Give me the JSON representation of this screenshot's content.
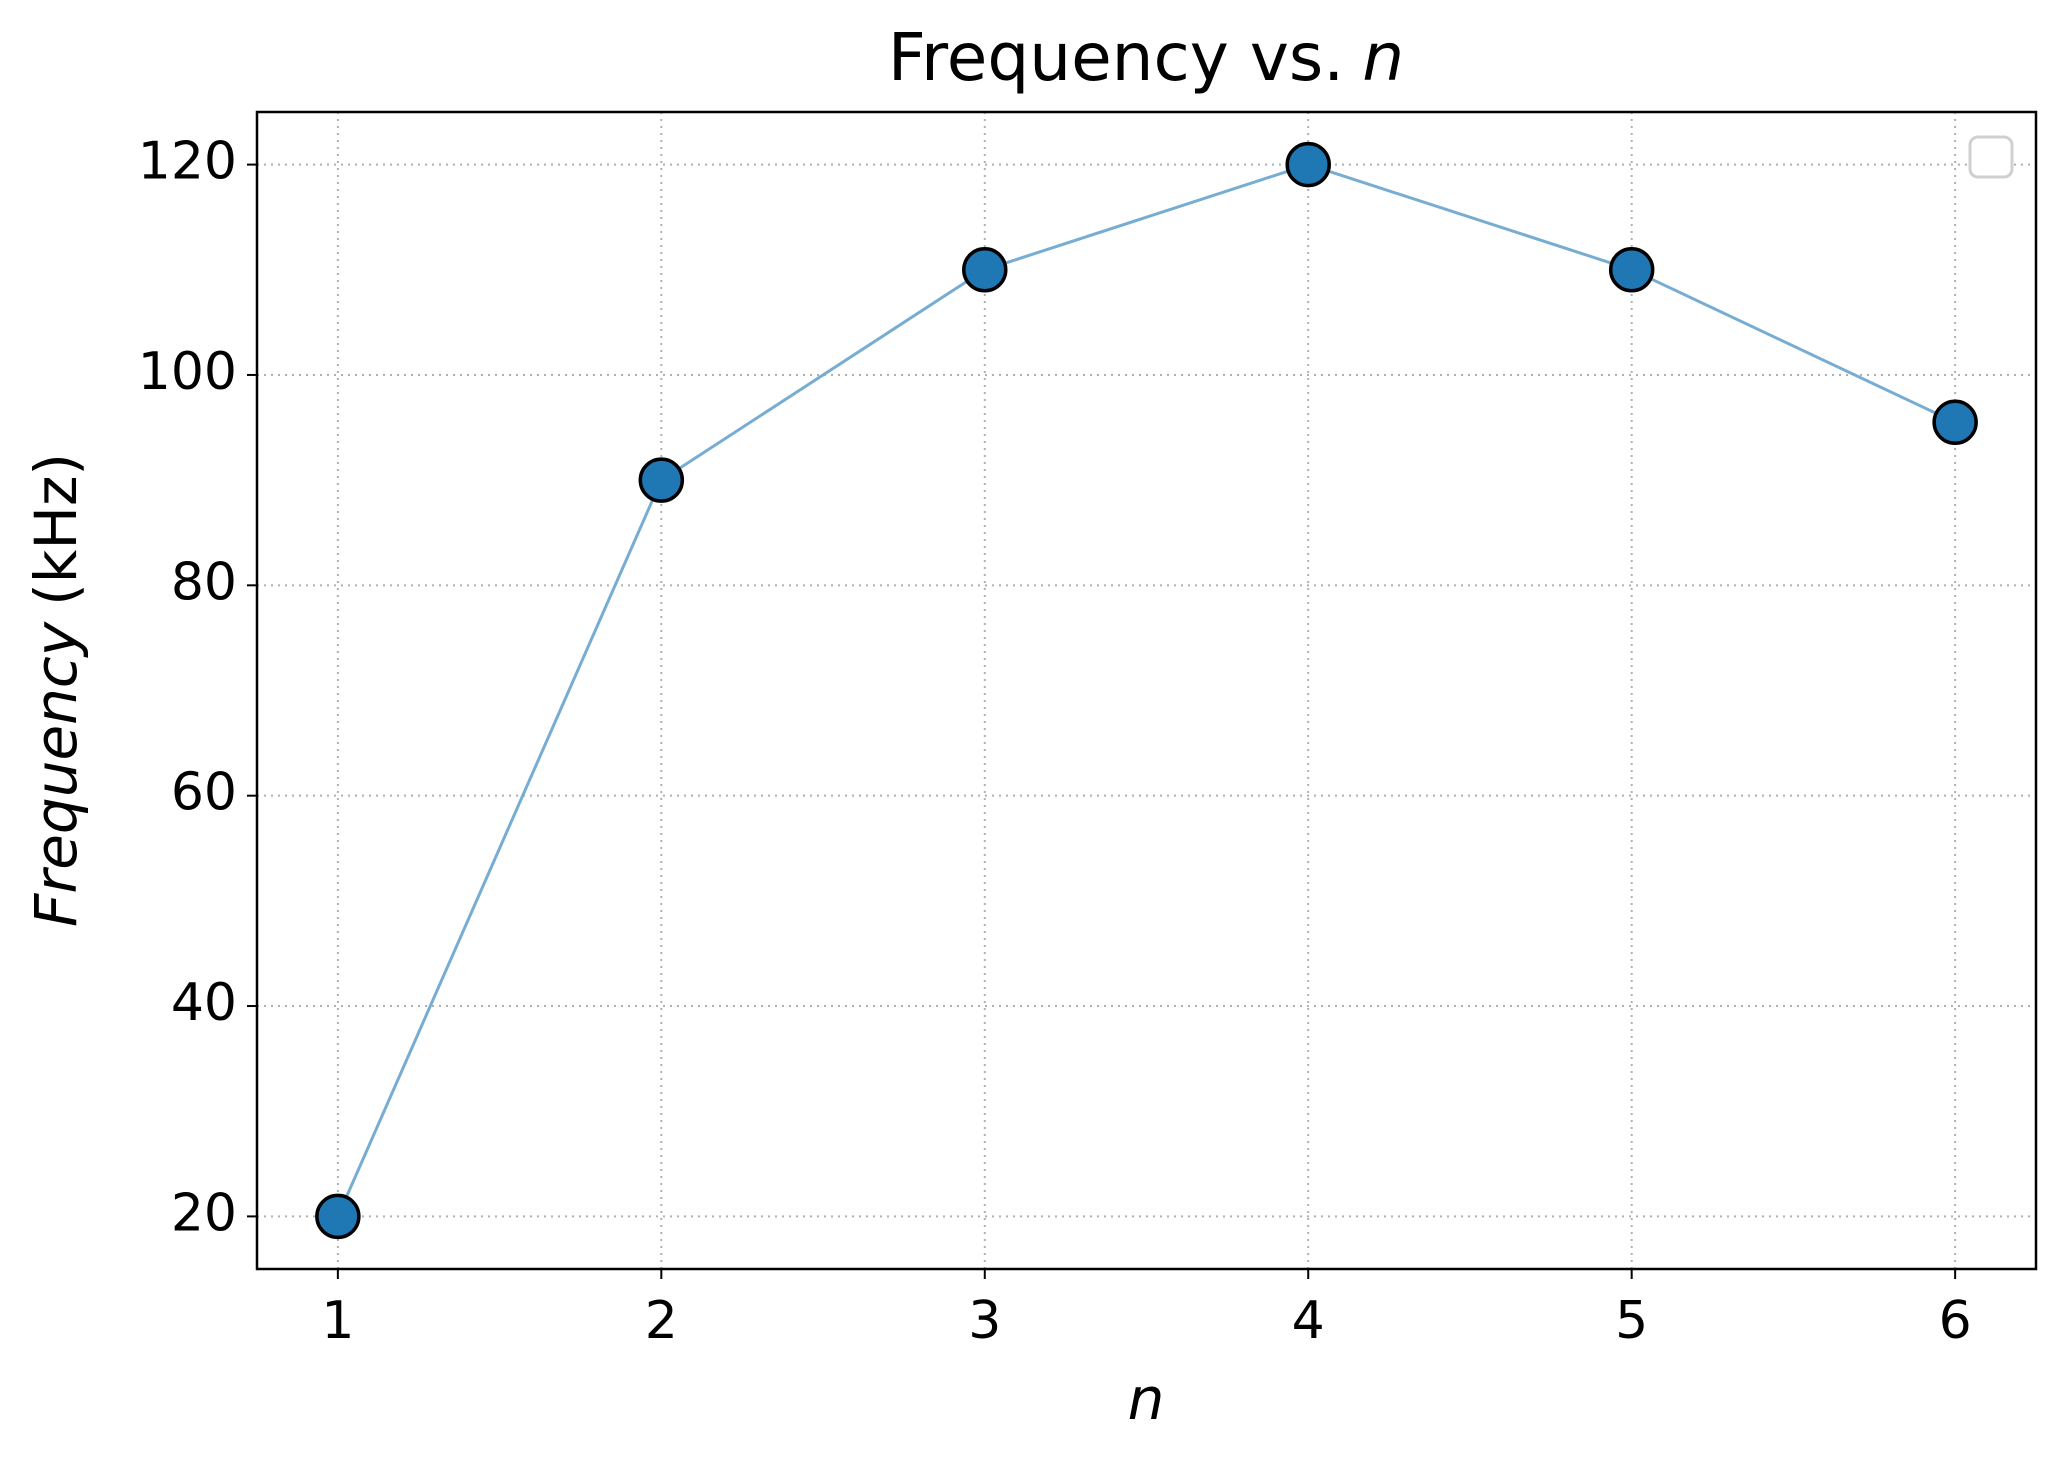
{
  "chart_data": {
    "type": "line",
    "title": [
      "Frequency vs.",
      "n"
    ],
    "x_label": "n",
    "y_label": [
      "Frequency",
      "(kHz)"
    ],
    "x": [
      1,
      2,
      3,
      4,
      5,
      6
    ],
    "series": [
      {
        "color": "#1f77b4",
        "line_color": "#77acd3",
        "values": [
          20,
          90,
          110,
          120,
          110,
          95.5
        ]
      }
    ],
    "xlim": [
      0.75,
      6.25
    ],
    "xticks": [
      1,
      2,
      3,
      4,
      5,
      6
    ],
    "ylim": [
      15,
      125
    ],
    "yticks": [
      20,
      40,
      60,
      80,
      100,
      120
    ],
    "grid": true
  }
}
